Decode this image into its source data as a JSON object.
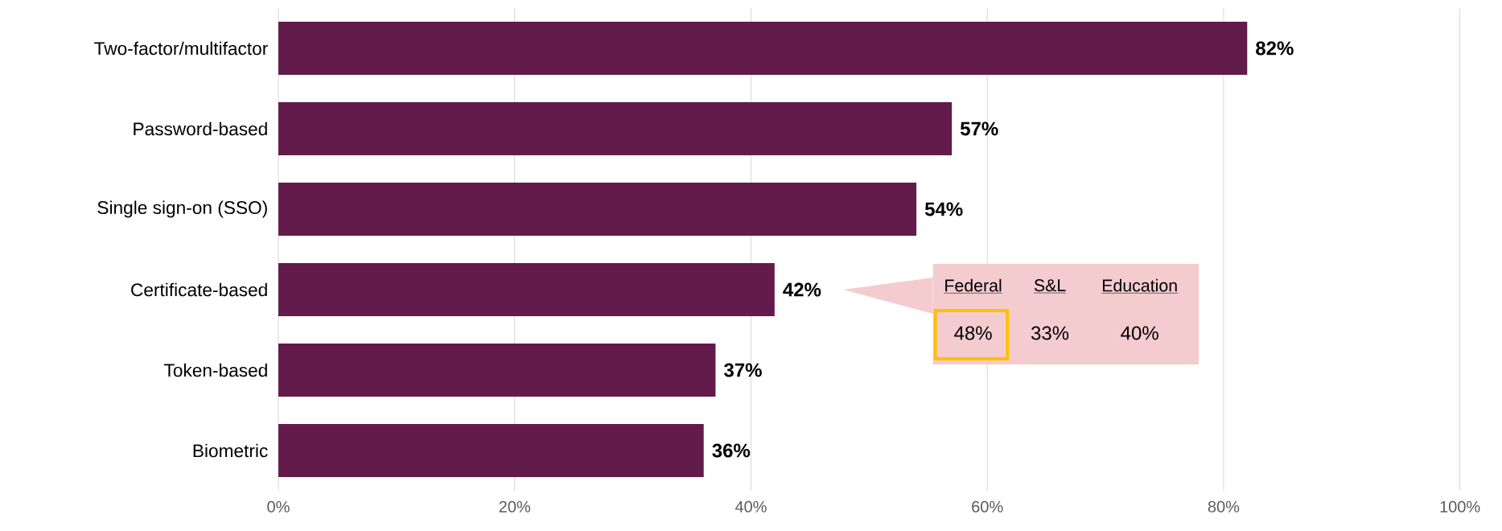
{
  "chart_data": {
    "type": "bar",
    "orientation": "horizontal",
    "categories": [
      "Two-factor/multifactor",
      "Password-based",
      "Single sign-on (SSO)",
      "Certificate-based",
      "Token-based",
      "Biometric"
    ],
    "values": [
      82,
      57,
      54,
      42,
      37,
      36
    ],
    "value_labels": [
      "82%",
      "57%",
      "54%",
      "42%",
      "37%",
      "36%"
    ],
    "color": "#621b4b",
    "xlim": [
      0,
      100
    ],
    "xticks": [
      {
        "value": 0,
        "label": "0%"
      },
      {
        "value": 20,
        "label": "20%"
      },
      {
        "value": 40,
        "label": "40%"
      },
      {
        "value": 60,
        "label": "60%"
      },
      {
        "value": 80,
        "label": "80%"
      },
      {
        "value": 100,
        "label": "100%"
      }
    ],
    "grid": "x",
    "annotations": [
      "Federal",
      "S&L",
      "Education",
      "48%",
      "33%",
      "40%"
    ]
  }
}
